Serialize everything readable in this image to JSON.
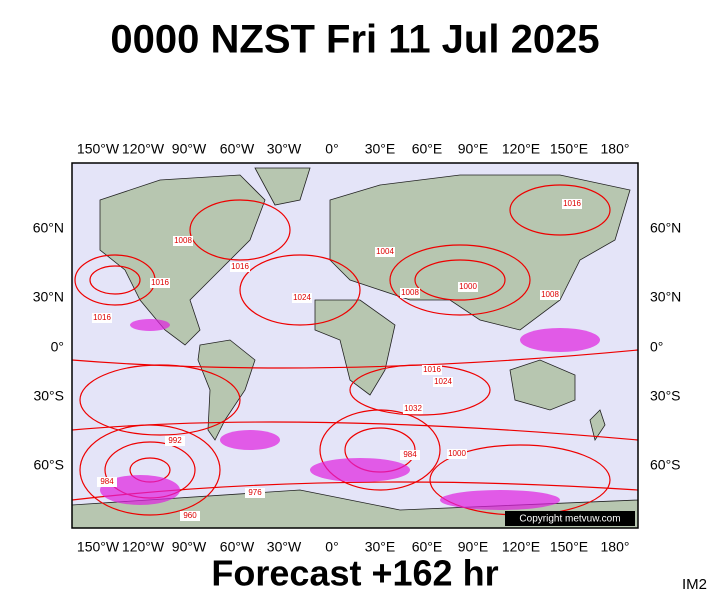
{
  "header": {
    "title": "0000 NZST Fri 11 Jul 2025"
  },
  "map": {
    "top_longitudes": [
      "150°W",
      "120°W",
      "90°W",
      "60°W",
      "30°W",
      "0°",
      "30°E",
      "60°E",
      "90°E",
      "120°E",
      "150°E",
      "180°"
    ],
    "bottom_longitudes": [
      "150°W",
      "120°W",
      "90°W",
      "60°W",
      "30°W",
      "0°",
      "30°E",
      "60°E",
      "90°E",
      "120°E",
      "150°E",
      "180°"
    ],
    "left_latitudes": [
      "60°N",
      "30°N",
      "0°",
      "30°S",
      "60°S"
    ],
    "right_latitudes": [
      "60°N",
      "30°N",
      "0°",
      "30°S",
      "60°S"
    ],
    "isobar_labels": [
      "1016",
      "1016",
      "1008",
      "1016",
      "1024",
      "1004",
      "1008",
      "1000",
      "1008",
      "1016",
      "1016",
      "1024",
      "1032",
      "992",
      "984",
      "1000",
      "984",
      "976",
      "960"
    ],
    "copyright": "Copyright metvuw.com"
  },
  "footer": {
    "forecast": "Forecast +162 hr",
    "image_id": "IM2"
  }
}
